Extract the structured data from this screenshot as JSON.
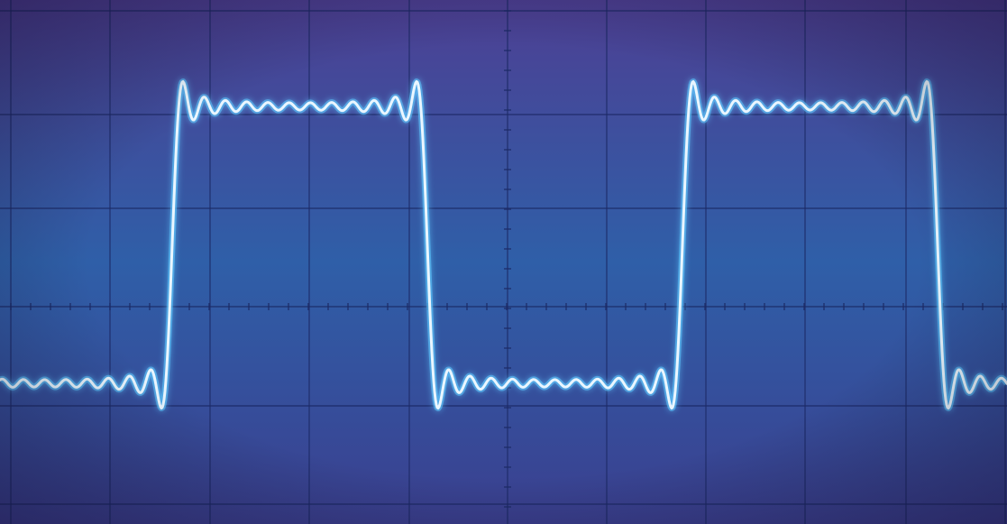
{
  "screen": {
    "colors": {
      "top_tint": "#4d3f93",
      "mid_tint": "#2f5fa8",
      "bottom_tint": "#3b3f8f",
      "grid": "#1c2a66",
      "trace": "#eaf6ff",
      "trace_glow": "#5fc8ff"
    },
    "grid": true,
    "divisions": {
      "horizontal": 10,
      "vertical": 5
    }
  },
  "signal": {
    "waveform": "square",
    "ringing": "gibbs",
    "harmonics": 12
  }
}
